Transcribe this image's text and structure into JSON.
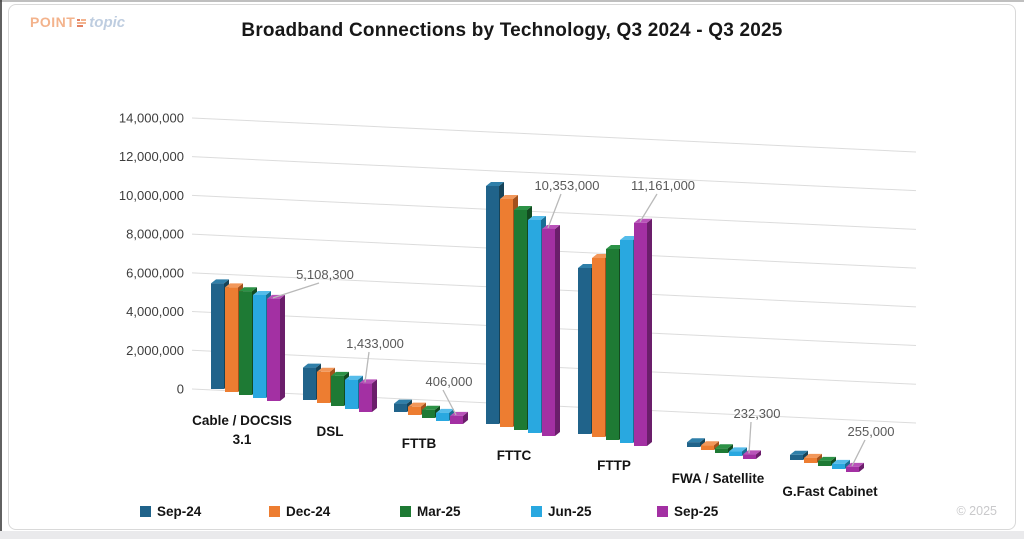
{
  "page": {
    "copyright": "© 2025"
  },
  "logo": {
    "point": "POINT",
    "topic": "topic"
  },
  "title": "Broadband Connections by Technology, Q3 2024 - Q3 2025",
  "chart_data": {
    "type": "bar",
    "subtype": "3d-clustered-column",
    "title": "Broadband Connections by Technology, Q3 2024 - Q3 2025",
    "xlabel": "",
    "ylabel": "",
    "grid": true,
    "categories": [
      "Cable / DOCSIS 3.1",
      "DSL",
      "FTTB",
      "FTTC",
      "FTTP",
      "FWA / Satellite",
      "G.Fast Cabinet"
    ],
    "category_label_lines": [
      [
        "Cable / DOCSIS",
        "3.1"
      ],
      [
        "DSL"
      ],
      [
        "FTTB"
      ],
      [
        "FTTC"
      ],
      [
        "FTTP"
      ],
      [
        "FWA / Satellite"
      ],
      [
        "G.Fast Cabinet"
      ]
    ],
    "series": [
      {
        "name": "Sep-24",
        "color": "#20638A",
        "side_color": "#164358",
        "top_color": "#2F7FA9",
        "values": [
          5280000,
          1620000,
          420000,
          11900000,
          8300000,
          240000,
          260000
        ]
      },
      {
        "name": "Dec-24",
        "color": "#ED7D31",
        "side_color": "#A3511C",
        "top_color": "#F2975A",
        "values": [
          5230000,
          1560000,
          416000,
          11400000,
          8950000,
          238000,
          259000
        ]
      },
      {
        "name": "Mar-25",
        "color": "#1E7A34",
        "side_color": "#124B20",
        "top_color": "#2C9246",
        "values": [
          5190000,
          1505000,
          412000,
          11000000,
          9550000,
          236000,
          257000
        ]
      },
      {
        "name": "Jun-25",
        "color": "#29A8E0",
        "side_color": "#1A6E94",
        "top_color": "#55BCEA",
        "values": [
          5150000,
          1465000,
          409000,
          10650000,
          10150000,
          234000,
          256000
        ]
      },
      {
        "name": "Sep-25",
        "color": "#A330A3",
        "side_color": "#6B1E6B",
        "top_color": "#B953B9",
        "values": [
          5108300,
          1433000,
          406000,
          10353000,
          11161000,
          232300,
          255000
        ]
      }
    ],
    "data_labels": [
      {
        "category": "Cable / DOCSIS 3.1",
        "series": "Sep-25",
        "text": "5,108,300"
      },
      {
        "category": "DSL",
        "series": "Sep-25",
        "text": "1,433,000"
      },
      {
        "category": "FTTB",
        "series": "Sep-25",
        "text": "406,000"
      },
      {
        "category": "FTTC",
        "series": "Sep-25",
        "text": "10,353,000"
      },
      {
        "category": "FTTP",
        "series": "Sep-25",
        "text": "11,161,000"
      },
      {
        "category": "FWA / Satellite",
        "series": "Sep-25",
        "text": "232,300"
      },
      {
        "category": "G.Fast Cabinet",
        "series": "Sep-25",
        "text": "255,000"
      }
    ],
    "y_axis": {
      "min": 0,
      "max": 14000000,
      "step": 2000000,
      "tick_labels": [
        "0",
        "2,000,000",
        "4,000,000",
        "6,000,000",
        "8,000,000",
        "10,000,000",
        "12,000,000",
        "14,000,000"
      ]
    },
    "legend": {
      "position": "bottom",
      "entries": [
        "Sep-24",
        "Dec-24",
        "Mar-25",
        "Jun-25",
        "Sep-25"
      ]
    },
    "colors": {
      "grid_line": "#dcdcdc",
      "callout_text": "#595959",
      "callout_line": "#b9b9b9"
    }
  }
}
